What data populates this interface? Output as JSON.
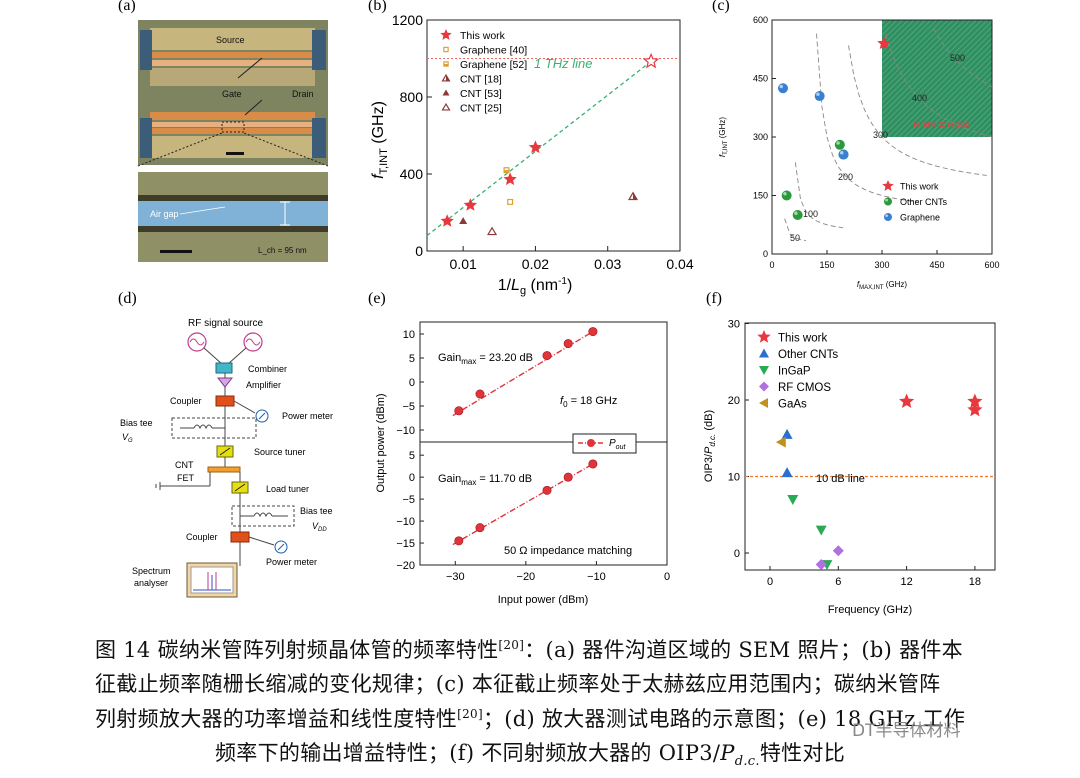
{
  "panels": {
    "a": {
      "letter": "(a)",
      "labels": [
        "Source",
        "Gate",
        "Drain",
        "Air gap"
      ],
      "scale_label": "L_ch = 95 nm"
    },
    "b": {
      "letter": "(b)",
      "thz_label": "1 THz line"
    },
    "c": {
      "letter": "(c)",
      "region_label": "Terahertz region",
      "contour_labels": [
        "50",
        "100",
        "200",
        "300",
        "400",
        "500"
      ]
    },
    "d": {
      "letter": "(d)",
      "blocks": {
        "source": "RF signal source",
        "combiner": "Combiner",
        "amplifier": "Amplifier",
        "coupler1": "Coupler",
        "power_meter1": "Power meter",
        "bias_tee1": "Bias tee",
        "vg": "V",
        "vg_sub": "G",
        "source_tuner": "Source tuner",
        "cnt": "CNT",
        "fet": "FET",
        "load_tuner": "Load tuner",
        "bias_tee2": "Bias tee",
        "vdd": "V",
        "vdd_sub": "DD",
        "coupler2": "Coupler",
        "power_meter2": "Power meter",
        "spectrum1": "Spectrum",
        "spectrum2": "analyser"
      }
    },
    "e": {
      "letter": "(e)",
      "gain_top_pre": "Gain",
      "gain_top_sub": "max",
      "gain_top_val": " = 23.20 dB",
      "gain_bot_pre": "Gain",
      "gain_bot_sub": "max",
      "gain_bot_val": " = 11.70 dB",
      "f0_pre": "f",
      "f0_sub": "0",
      "f0_val": " = 18 GHz",
      "legend_pre": "P",
      "legend_sub": "out",
      "impedance": "50 Ω impedance matching"
    },
    "f": {
      "letter": "(f)",
      "line_label": "10 dB line"
    }
  },
  "caption": {
    "line1_a": "图 14  碳纳米管阵列射频晶体管的频率特性",
    "ref1": "[20]",
    "line1_b": "：(a)  器件沟道区域的 SEM 照片；(b)  器件本",
    "line2": "征截止频率随栅长缩减的变化规律；(c)  本征截止频率处于太赫兹应用范围内；碳纳米管阵",
    "line3_a": "列射频放大器的功率增益和线性度特性",
    "ref2": "[20]",
    "line3_b": "；(d)  放大器测试电路的示意图；(e) 18 GHz 工作",
    "line4_a": "频率下的输出增益特性；(f)  不同射频放大器的 OIP3/",
    "line4_b": "P",
    "line4_sub": "d.c.",
    "line4_c": "特性对比"
  },
  "watermark": "DT半导体材料",
  "chart_data": [
    {
      "panel": "b",
      "type": "scatter",
      "xlabel": "1/Lg (nm-1)",
      "ylabel": "fT,INT (GHz)",
      "xlim": [
        0.005,
        0.04
      ],
      "ylim": [
        0,
        1200
      ],
      "xticks": [
        "0.01",
        "0.02",
        "0.03",
        "0.04"
      ],
      "yticks": [
        "0",
        "400",
        "800",
        "1200"
      ],
      "legend_position": "top-left",
      "series": [
        {
          "name": "This work",
          "marker": "star",
          "color": "#e8383d",
          "points": [
            [
              0.0078,
              155
            ],
            [
              0.011,
              238
            ],
            [
              0.0165,
              372
            ],
            [
              0.02,
              538
            ]
          ]
        },
        {
          "name": "Graphene [40]",
          "marker": "square-open",
          "color": "#e0a030",
          "points": [
            [
              0.0165,
              255
            ]
          ]
        },
        {
          "name": "Graphene [52]",
          "marker": "square-half",
          "color": "#e0a030",
          "points": [
            [
              0.016,
              420
            ]
          ]
        },
        {
          "name": "CNT [18]",
          "marker": "triangle-half",
          "color": "#8a3a3a",
          "points": [
            [
              0.0335,
              282
            ]
          ]
        },
        {
          "name": "CNT [53]",
          "marker": "triangle",
          "color": "#8a3a3a",
          "points": [
            [
              0.01,
              155
            ]
          ]
        },
        {
          "name": "CNT [25]",
          "marker": "triangle-open",
          "color": "#8a3a3a",
          "points": [
            [
              0.014,
              100
            ]
          ]
        }
      ],
      "thz_line": 1000,
      "extrapolated_point": [
        0.036,
        985
      ],
      "trend": [
        [
          0.005,
          80
        ],
        [
          0.036,
          985
        ]
      ]
    },
    {
      "panel": "c",
      "type": "scatter",
      "xlabel": "fMAX,INT (GHz)",
      "ylabel": "fT,INT (GHz)",
      "xlim": [
        0,
        600
      ],
      "ylim": [
        0,
        600
      ],
      "xticks": [
        "0",
        "150",
        "300",
        "450",
        "600"
      ],
      "yticks": [
        "0",
        "150",
        "300",
        "450",
        "600"
      ],
      "legend_position": "bottom-right",
      "series": [
        {
          "name": "This work",
          "marker": "star",
          "color": "#e8383d",
          "points": [
            [
              305,
              540
            ]
          ]
        },
        {
          "name": "Other CNTs",
          "marker": "sphere",
          "color": "#2a9a3a",
          "points": [
            [
              40,
              150
            ],
            [
              70,
              100
            ],
            [
              185,
              280
            ],
            [
              195,
              255
            ]
          ]
        },
        {
          "name": "Graphene",
          "marker": "sphere",
          "color": "#3a80d0",
          "points": [
            [
              30,
              425
            ],
            [
              130,
              405
            ],
            [
              195,
              255
            ]
          ]
        }
      ],
      "contours": [
        50,
        100,
        200,
        300,
        400,
        500
      ],
      "thz_region": {
        "xmin": 300,
        "ymin": 300
      }
    },
    {
      "panel": "e",
      "type": "line",
      "xlabel": "Input power (dBm)",
      "ylabel": "Output power (dBm)",
      "xlim": [
        -35,
        0
      ],
      "xticks": [
        "−30",
        "−20",
        "−10",
        "0"
      ],
      "yticks_top": [
        "−10",
        "−5",
        "0",
        "5",
        "10"
      ],
      "yticks_bottom": [
        "−20",
        "−15",
        "−10",
        "−5",
        "0",
        "5"
      ],
      "legend_position": "center-right",
      "series": [
        {
          "name": "Pout",
          "panel": "top",
          "color": "#e0333a",
          "x": [
            -29.5,
            -26.5,
            -17,
            -14,
            -10.5
          ],
          "y": [
            -6,
            -2.5,
            5.5,
            8,
            10.5
          ]
        },
        {
          "name": "Pout",
          "panel": "bottom",
          "color": "#e0333a",
          "x": [
            -29.5,
            -26.5,
            -17,
            -14,
            -10.5
          ],
          "y": [
            -14.5,
            -11.5,
            -3,
            0,
            3
          ]
        }
      ]
    },
    {
      "panel": "f",
      "type": "scatter",
      "xlabel": "Frequency (GHz)",
      "ylabel": "OIP3/Pd.c. (dB)",
      "xlim": [
        0,
        20
      ],
      "ylim": [
        -2,
        30
      ],
      "xticks": [
        "0",
        "6",
        "12",
        "18"
      ],
      "yticks": [
        "0",
        "10",
        "20",
        "30"
      ],
      "legend_position": "top-left",
      "reference_line": 10,
      "series": [
        {
          "name": "This work",
          "marker": "star",
          "color": "#e8383d",
          "points": [
            [
              12,
              19.8
            ],
            [
              18,
              19.8
            ],
            [
              18,
              18.7
            ]
          ]
        },
        {
          "name": "Other CNTs",
          "marker": "triangle-up",
          "color": "#2a6fd0",
          "points": [
            [
              1.5,
              15.5
            ],
            [
              1.5,
              10.5
            ]
          ]
        },
        {
          "name": "InGaP",
          "marker": "triangle-down",
          "color": "#2aaa55",
          "points": [
            [
              2,
              7
            ],
            [
              4.5,
              3
            ],
            [
              5,
              -1.5
            ]
          ]
        },
        {
          "name": "RF CMOS",
          "marker": "diamond",
          "color": "#b070e0",
          "points": [
            [
              4.5,
              -1.5
            ],
            [
              6,
              0.3
            ]
          ]
        },
        {
          "name": "GaAs",
          "marker": "triangle-left",
          "color": "#c09020",
          "points": [
            [
              1,
              14.5
            ]
          ]
        }
      ]
    }
  ]
}
